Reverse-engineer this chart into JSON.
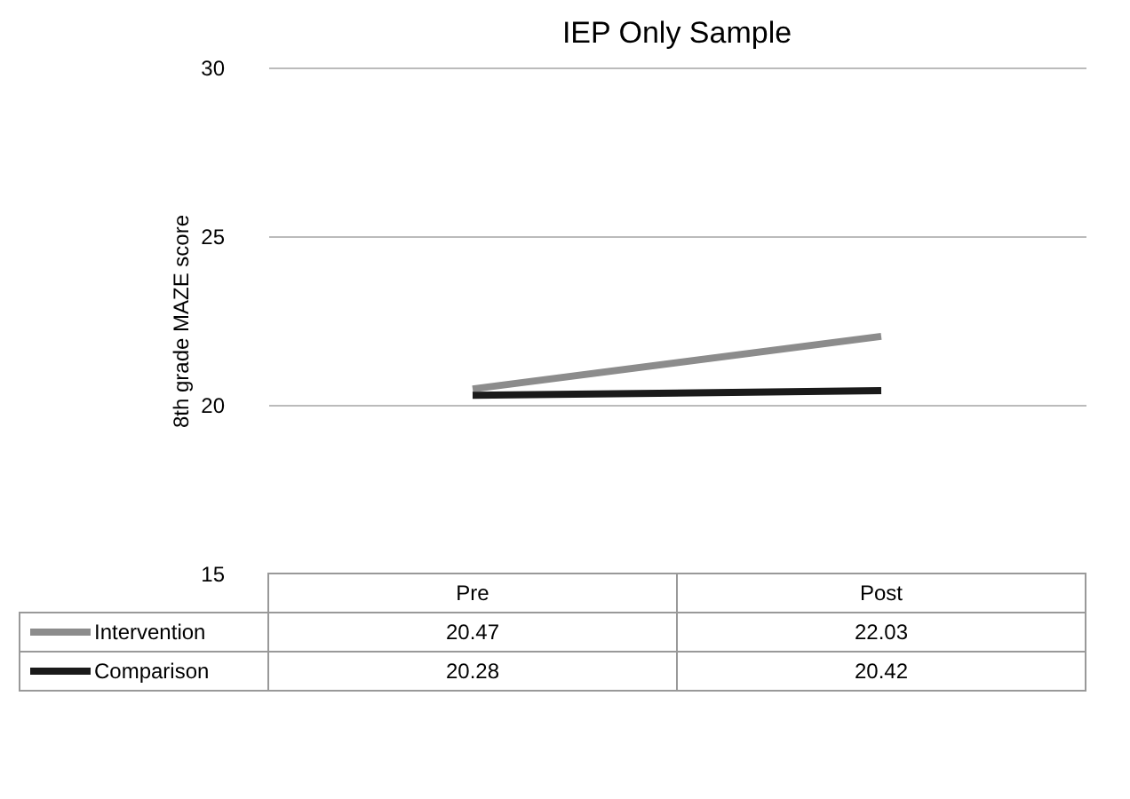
{
  "chart_data": {
    "type": "line",
    "title": "IEP Only Sample",
    "ylabel": "8th grade MAZE score",
    "categories": [
      "Pre",
      "Post"
    ],
    "series": [
      {
        "name": "Intervention",
        "color": "#8c8c8c",
        "values": [
          20.47,
          22.03
        ]
      },
      {
        "name": "Comparison",
        "color": "#1a1a1a",
        "values": [
          20.28,
          20.42
        ]
      }
    ],
    "ylim": [
      15,
      30
    ],
    "yticks": [
      15,
      20,
      25,
      30
    ],
    "grid": "y",
    "legend": "bottom",
    "data_labels": true
  }
}
